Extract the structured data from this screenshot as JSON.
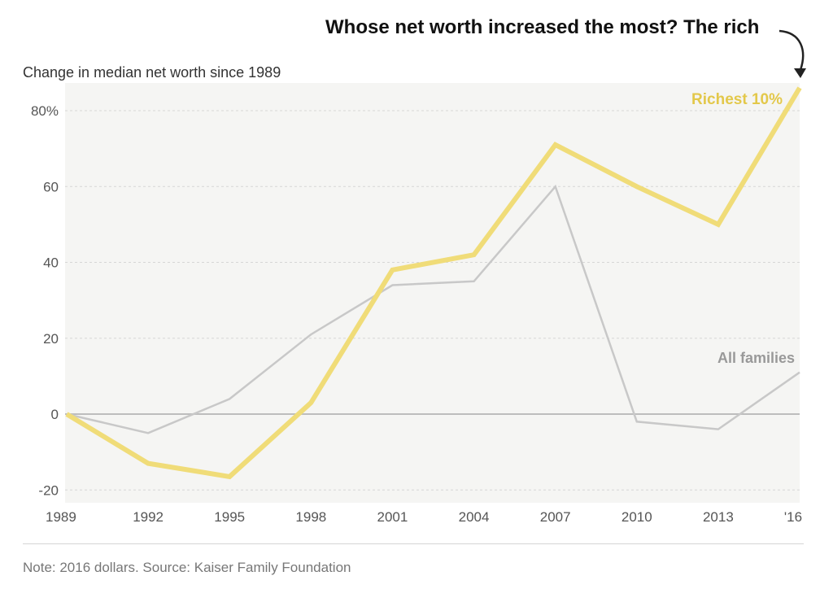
{
  "headline": "Whose net worth increased the most? The rich",
  "note": "Note: 2016 dollars. Source: Kaiser Family Foundation",
  "chart_data": {
    "type": "line",
    "title": "Change in median net worth since 1989",
    "x": [
      "1989",
      "1992",
      "1995",
      "1998",
      "2001",
      "2004",
      "2007",
      "2010",
      "2013",
      "'16"
    ],
    "y_ticks": [
      "80%",
      "60",
      "40",
      "20",
      "0",
      "-20"
    ],
    "ylim": [
      -22,
      87
    ],
    "series": [
      {
        "name": "All families",
        "color": "#c8c8c8",
        "values": [
          0,
          -5,
          4,
          21,
          34,
          35,
          60,
          -2,
          -4,
          11
        ]
      },
      {
        "name": "Richest 10%",
        "color": "#f0dc78",
        "values": [
          0,
          -13,
          -16.5,
          3,
          38,
          42,
          71,
          60,
          50,
          86
        ]
      }
    ],
    "grid": true,
    "labels": {
      "All families": "All families",
      "Richest 10%": "Richest 10%"
    },
    "label_colors": {
      "All families": "#999999",
      "Richest 10%": "#e3c84a"
    }
  }
}
